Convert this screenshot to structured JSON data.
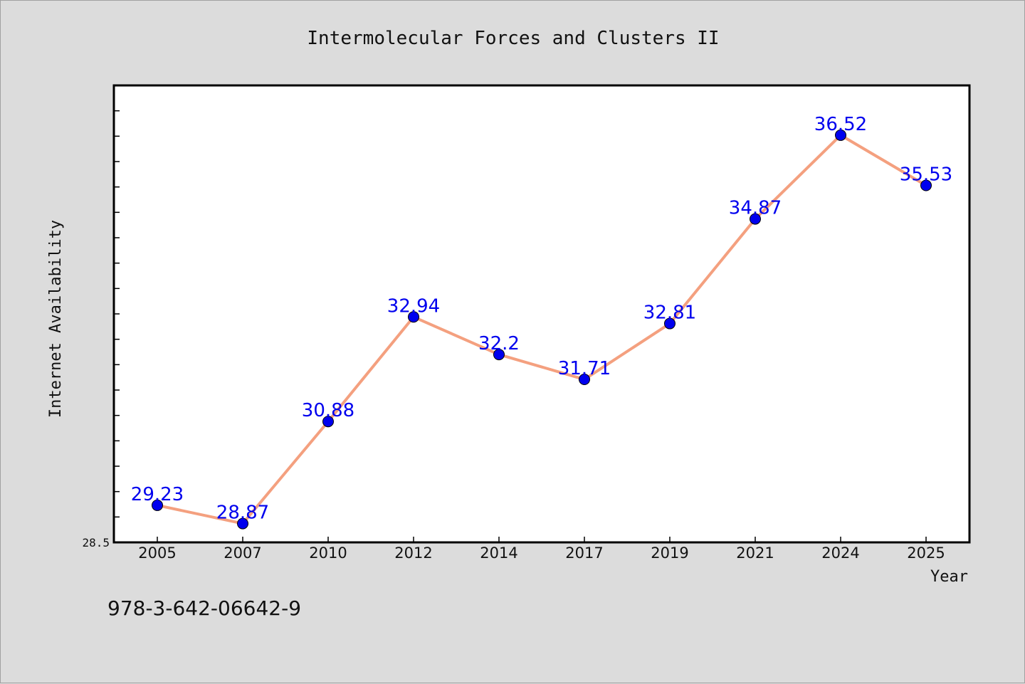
{
  "chart_data": {
    "type": "line",
    "title": "Intermolecular Forces and Clusters II",
    "xlabel": "Year",
    "ylabel": "Internet Availability",
    "categories": [
      "2005",
      "2007",
      "2010",
      "2012",
      "2014",
      "2017",
      "2019",
      "2021",
      "2024",
      "2025"
    ],
    "series": [
      {
        "values": [
          29.23,
          28.87,
          30.88,
          32.94,
          32.2,
          31.71,
          32.81,
          34.87,
          36.52,
          35.53
        ],
        "data_labels": [
          "29.23",
          "28.87",
          "30.88",
          "32.94",
          "32.2",
          "31.71",
          "32.81",
          "34.87",
          "36.52",
          "35.53"
        ]
      }
    ],
    "ylim": [
      28.5,
      37.5
    ],
    "yticks_labeled": [
      "28.5"
    ],
    "grid": false,
    "legend": "none",
    "colors": {
      "line": "#f4a07f",
      "marker": "#0000ee",
      "data_label": "#0000ee",
      "plot_background": "#ffffff",
      "figure_background": "#dcdcdc"
    }
  },
  "footnote": "978-3-642-06642-9"
}
